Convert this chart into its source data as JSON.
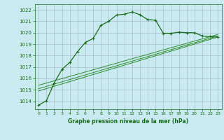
{
  "title": "Graphe pression niveau de la mer (hPa)",
  "background_color": "#c8eaf0",
  "grid_color": "#aabccc",
  "line_color_main": "#1a6b1a",
  "line_color_thin": "#2d8c2d",
  "xlim": [
    -0.5,
    23.5
  ],
  "ylim": [
    1013.3,
    1022.5
  ],
  "yticks": [
    1014,
    1015,
    1016,
    1017,
    1018,
    1019,
    1020,
    1021,
    1022
  ],
  "xticks": [
    0,
    1,
    2,
    3,
    4,
    5,
    6,
    7,
    8,
    9,
    10,
    11,
    12,
    13,
    14,
    15,
    16,
    17,
    18,
    19,
    20,
    21,
    22,
    23
  ],
  "series1": {
    "x": [
      0,
      1,
      2,
      3,
      4,
      5,
      6,
      7,
      8,
      9,
      10,
      11,
      12,
      13,
      14,
      15,
      16,
      17,
      18,
      19,
      20,
      21,
      22,
      23
    ],
    "y": [
      1013.65,
      1014.05,
      1015.6,
      1016.8,
      1017.4,
      1018.35,
      1019.15,
      1019.5,
      1020.65,
      1021.0,
      1021.55,
      1021.62,
      1021.82,
      1021.58,
      1021.15,
      1021.1,
      1019.95,
      1019.95,
      1020.05,
      1020.0,
      1020.0,
      1019.72,
      1019.65,
      1019.62
    ]
  },
  "series_linear1": {
    "x": [
      0,
      23
    ],
    "y": [
      1014.9,
      1019.62
    ]
  },
  "series_linear2": {
    "x": [
      0,
      23
    ],
    "y": [
      1015.1,
      1019.72
    ]
  },
  "series_linear3": {
    "x": [
      0,
      23
    ],
    "y": [
      1015.4,
      1019.85
    ]
  }
}
